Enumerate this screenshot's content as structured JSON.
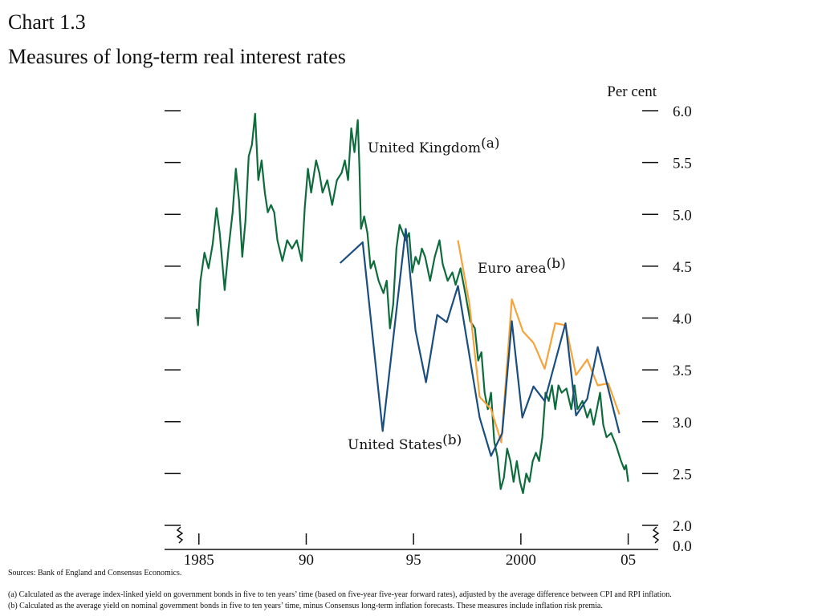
{
  "chart_data": {
    "type": "line",
    "title": "Chart 1.3",
    "subtitle": "Measures of long-term real interest rates",
    "y_axis_label": "Per cent",
    "xlim": [
      1983.4,
      2006.4
    ],
    "xticks": [
      1985,
      {
        "value": 1990,
        "label": "90"
      },
      {
        "value": 1995,
        "label": "95"
      },
      2000,
      {
        "value": 2005,
        "label": "05"
      }
    ],
    "ylim": [
      2.0,
      6.0
    ],
    "yticks": [
      {
        "value": 2.0,
        "label": "2.0"
      },
      {
        "value": 2.5,
        "label": "2.5"
      },
      {
        "value": 3.0,
        "label": "3.0"
      },
      {
        "value": 3.5,
        "label": "3.5"
      },
      {
        "value": 4.0,
        "label": "4.0"
      },
      {
        "value": 4.5,
        "label": "4.5"
      },
      {
        "value": 5.0,
        "label": "5.0"
      },
      {
        "value": 5.5,
        "label": "5.5"
      },
      {
        "value": 6.0,
        "label": "6.0"
      }
    ],
    "axis_break": {
      "value": 0,
      "label": "0.0"
    },
    "series": [
      {
        "name": "United Kingdom",
        "note": "(a)",
        "color": "#0f6b3c",
        "x": [
          1984.89,
          1984.96,
          1985.07,
          1985.26,
          1985.45,
          1985.64,
          1985.82,
          1985.97,
          1986.2,
          1986.38,
          1986.57,
          1986.72,
          1986.87,
          1987.02,
          1987.17,
          1987.32,
          1987.47,
          1987.62,
          1987.77,
          1987.92,
          1988.07,
          1988.21,
          1988.36,
          1988.51,
          1988.66,
          1988.89,
          1989.11,
          1989.34,
          1989.56,
          1989.79,
          1989.93,
          1990.08,
          1990.23,
          1990.46,
          1990.61,
          1990.76,
          1990.98,
          1991.21,
          1991.43,
          1991.65,
          1991.8,
          1991.95,
          1992.1,
          1992.25,
          1992.4,
          1992.48,
          1992.55,
          1992.7,
          1992.85,
          1993.0,
          1993.15,
          1993.37,
          1993.6,
          1993.75,
          1993.9,
          1994.05,
          1994.2,
          1994.35,
          1994.5,
          1994.64,
          1994.79,
          1994.94,
          1995.09,
          1995.24,
          1995.39,
          1995.54,
          1995.77,
          1995.99,
          1996.21,
          1996.36,
          1996.59,
          1996.81,
          1996.96,
          1997.19,
          1997.41,
          1997.64,
          1997.86,
          1998.01,
          1998.16,
          1998.31,
          1998.46,
          1998.61,
          1998.76,
          1998.91,
          1999.06,
          1999.21,
          1999.36,
          1999.51,
          1999.66,
          1999.81,
          1999.96,
          2000.1,
          2000.25,
          2000.4,
          2000.55,
          2000.7,
          2000.85,
          2001.0,
          2001.15,
          2001.3,
          2001.45,
          2001.6,
          2001.75,
          2001.9,
          2002.12,
          2002.35,
          2002.5,
          2002.64,
          2002.87,
          2003.09,
          2003.24,
          2003.39,
          2003.54,
          2003.69,
          2003.84,
          2003.99,
          2004.21,
          2004.44,
          2004.67,
          2004.82,
          2004.9,
          2005.0
        ],
        "values": [
          4.09,
          3.93,
          4.36,
          4.63,
          4.48,
          4.71,
          5.06,
          4.82,
          4.27,
          4.67,
          5.02,
          5.44,
          5.13,
          4.59,
          4.94,
          5.56,
          5.67,
          5.97,
          5.33,
          5.52,
          5.21,
          5.02,
          5.09,
          5.02,
          4.75,
          4.55,
          4.75,
          4.67,
          4.75,
          4.55,
          5.06,
          5.44,
          5.21,
          5.52,
          5.4,
          5.21,
          5.33,
          5.09,
          5.33,
          5.4,
          5.52,
          5.33,
          5.83,
          5.6,
          5.91,
          5.44,
          4.86,
          4.98,
          4.82,
          4.48,
          4.55,
          4.36,
          4.24,
          4.36,
          3.9,
          4.13,
          4.67,
          4.9,
          4.82,
          4.75,
          4.82,
          4.44,
          4.59,
          4.52,
          4.67,
          4.59,
          4.36,
          4.59,
          4.75,
          4.52,
          4.36,
          4.44,
          4.32,
          4.48,
          4.24,
          3.97,
          3.9,
          3.59,
          3.67,
          3.28,
          3.12,
          3.28,
          2.81,
          2.66,
          2.35,
          2.46,
          2.74,
          2.62,
          2.42,
          2.62,
          2.42,
          2.31,
          2.5,
          2.42,
          2.62,
          2.7,
          2.62,
          2.85,
          3.28,
          3.2,
          3.35,
          3.12,
          3.35,
          3.28,
          3.32,
          3.12,
          3.35,
          3.12,
          3.2,
          3.04,
          3.12,
          2.97,
          3.12,
          3.28,
          2.97,
          2.85,
          2.89,
          2.77,
          2.62,
          2.54,
          2.58,
          2.42
        ]
      },
      {
        "name": "Euro area",
        "note": "(b)",
        "color": "#f5a33a",
        "x": [
          1997.07,
          1997.6,
          1998.08,
          1998.61,
          1999.09,
          1999.58,
          2000.1,
          2000.59,
          2001.11,
          2001.6,
          2002.08,
          2002.57,
          2003.09,
          2003.58,
          2004.07,
          2004.59
        ],
        "values": [
          4.75,
          4.14,
          3.24,
          3.12,
          2.8,
          4.18,
          3.87,
          3.76,
          3.51,
          3.95,
          3.93,
          3.45,
          3.6,
          3.35,
          3.37,
          3.07
        ]
      },
      {
        "name": "United States",
        "note": "(b)",
        "color": "#1a4d80",
        "x": [
          1991.58,
          1992.63,
          1993.56,
          1994.64,
          1995.09,
          1995.58,
          1996.1,
          1996.55,
          1997.07,
          1998.08,
          1998.61,
          1999.13,
          1999.58,
          2000.07,
          2000.59,
          2001.11,
          2002.08,
          2002.57,
          2003.09,
          2003.58,
          2004.59
        ],
        "values": [
          4.53,
          4.73,
          2.91,
          4.86,
          3.88,
          3.38,
          4.03,
          3.96,
          4.31,
          3.04,
          2.67,
          2.89,
          3.97,
          3.04,
          3.34,
          3.2,
          3.95,
          3.06,
          3.22,
          3.72,
          2.89
        ]
      }
    ],
    "sources": "Sources:  Bank of England and Consensus Economics.",
    "footnotes": [
      "(a) Calculated as the average index-linked yield on government bonds in five to ten years’ time (based on five-year five-year forward rates), adjusted by the average difference between CPI and RPI inflation.",
      "(b) Calculated as the average yield on nominal government bonds in five to ten years’ time, minus Consensus long-term inflation forecasts.  These measures include inflation risk premia."
    ]
  }
}
